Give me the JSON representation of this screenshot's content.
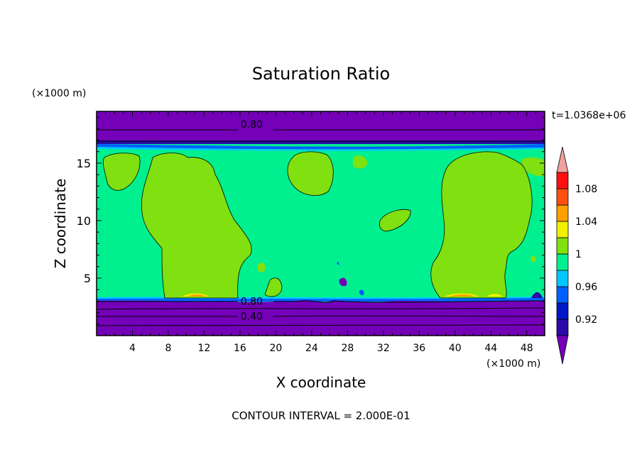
{
  "chart_data": {
    "type": "heatmap",
    "title": "Saturation Ratio",
    "xlabel": "X coordinate",
    "ylabel": "Z coordinate",
    "x_unit": "(×1000 m)",
    "y_unit": "(×1000 m)",
    "time_label": "t=1.0368e+06",
    "footer": "CONTOUR INTERVAL = 2.000E-01",
    "xlim": [
      0,
      50
    ],
    "ylim": [
      0,
      19.5
    ],
    "x_ticks": [
      4,
      8,
      12,
      16,
      20,
      24,
      28,
      32,
      36,
      40,
      44,
      48
    ],
    "y_ticks": [
      5,
      10,
      15
    ],
    "contour_labels": [
      {
        "text": "0.80",
        "x": 17.3,
        "z": 18.4
      },
      {
        "text": "0.80",
        "x": 17.3,
        "z": 3.0
      },
      {
        "text": "0.40",
        "x": 17.3,
        "z": 1.7
      }
    ],
    "colorbar": {
      "levels": [
        0.9,
        0.92,
        0.94,
        0.96,
        0.98,
        1.0,
        1.02,
        1.04,
        1.06,
        1.08,
        1.1
      ],
      "labels": [
        "0.92",
        "0.96",
        "1",
        "1.04",
        "1.08"
      ],
      "colors": [
        "#7400b8",
        "#2a0aa8",
        "#0018c8",
        "#0060ff",
        "#00c8ff",
        "#00f090",
        "#80e010",
        "#f0f000",
        "#ffa000",
        "#ff5010",
        "#ff1010",
        "#f0a0a0"
      ]
    },
    "regions": {
      "background": "#00f090",
      "dry_layer": "#7400b8",
      "moist_patch": "#80e010"
    }
  }
}
